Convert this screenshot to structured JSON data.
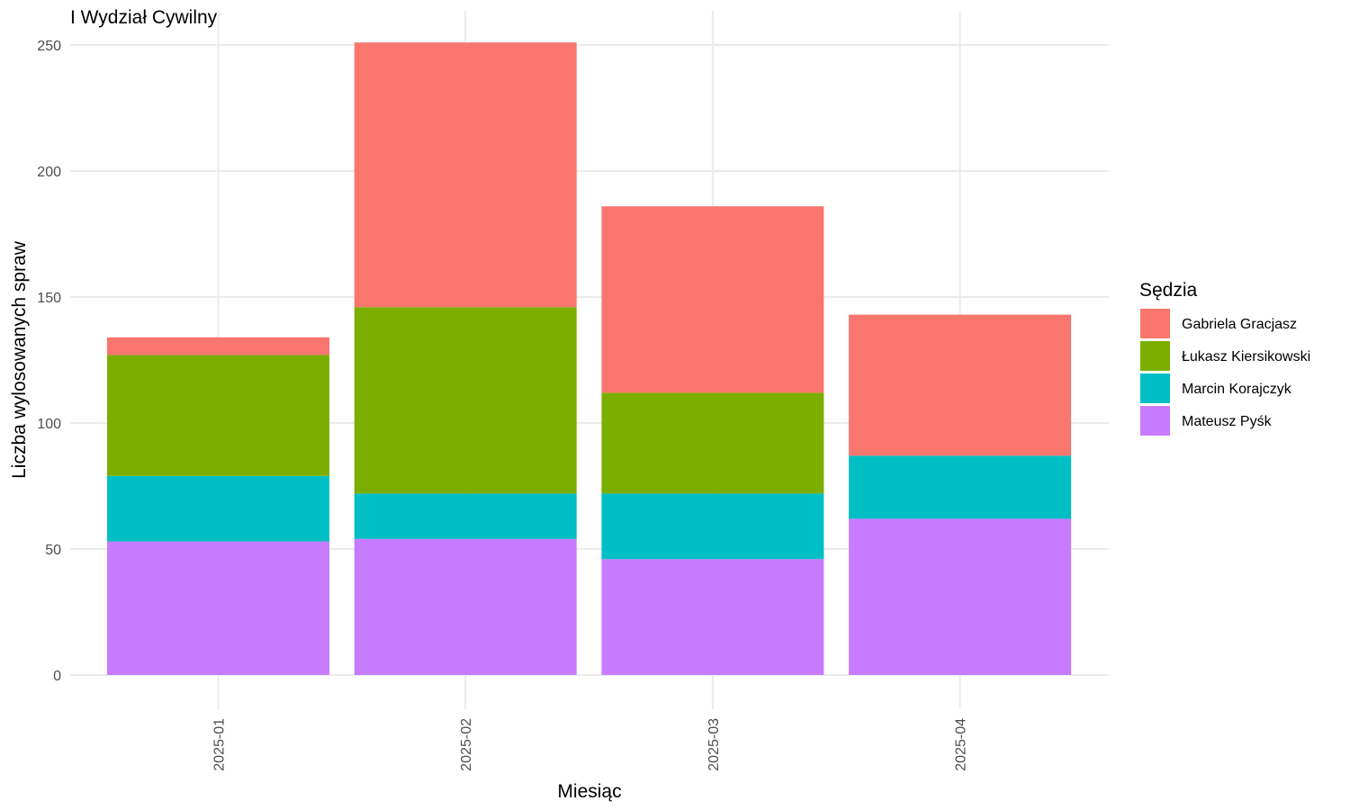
{
  "chart_data": {
    "type": "bar",
    "stacked": true,
    "title": "I Wydział Cywilny",
    "xlabel": "Miesiąc",
    "ylabel": "Liczba wylosowanych spraw",
    "categories": [
      "2025-01",
      "2025-02",
      "2025-03",
      "2025-04"
    ],
    "ylim": [
      0,
      260
    ],
    "yticks": [
      0,
      50,
      100,
      150,
      200,
      250
    ],
    "grid": true,
    "legend": {
      "title": "Sędzia",
      "position": "right"
    },
    "series": [
      {
        "name": "Gabriela Gracjasz",
        "color": "#F8766D",
        "values": [
          7,
          105,
          74,
          56
        ]
      },
      {
        "name": "Łukasz Kiersikowski",
        "color": "#7CAE00",
        "values": [
          48,
          74,
          40,
          0
        ]
      },
      {
        "name": "Marcin Korajczyk",
        "color": "#00BFC4",
        "values": [
          26,
          18,
          26,
          25
        ]
      },
      {
        "name": "Mateusz Pyśk",
        "color": "#C77CFF",
        "values": [
          53,
          54,
          46,
          62
        ]
      }
    ]
  }
}
